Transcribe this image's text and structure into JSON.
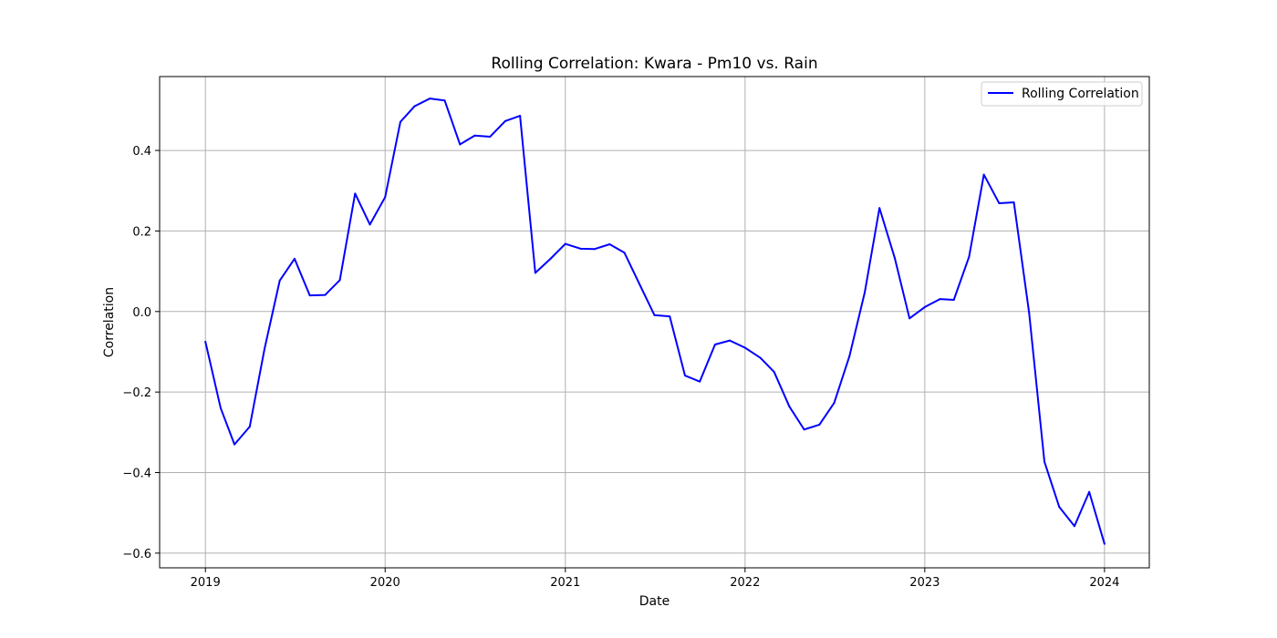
{
  "chart_data": {
    "type": "line",
    "title": "Rolling Correlation: Kwara - Pm10 vs. Rain",
    "xlabel": "Date",
    "ylabel": "Correlation",
    "x_ticks": [
      "2019",
      "2020",
      "2021",
      "2022",
      "2023",
      "2024"
    ],
    "y_ticks": [
      -0.6,
      -0.4,
      -0.2,
      0.0,
      0.2,
      0.4
    ],
    "y_tick_labels": [
      "−0.6",
      "−0.4",
      "−0.2",
      "0.0",
      "0.2",
      "0.4"
    ],
    "xlim": [
      "2018-09-30",
      "2024-04-01"
    ],
    "ylim": [
      -0.6365,
      0.5835
    ],
    "grid": true,
    "legend": {
      "position": "top-right",
      "entries": [
        "Rolling Correlation"
      ]
    },
    "colors": {
      "line": "#0000ff",
      "grid": "#b0b0b0"
    },
    "series": [
      {
        "name": "Rolling Correlation",
        "x": [
          "2019-01-01",
          "2019-02-01",
          "2019-03-01",
          "2019-04-01",
          "2019-05-01",
          "2019-06-01",
          "2019-07-01",
          "2019-08-01",
          "2019-09-01",
          "2019-10-01",
          "2019-11-01",
          "2019-12-01",
          "2020-01-01",
          "2020-02-01",
          "2020-03-01",
          "2020-04-01",
          "2020-05-01",
          "2020-06-01",
          "2020-07-01",
          "2020-08-01",
          "2020-09-01",
          "2020-10-01",
          "2020-11-01",
          "2020-12-01",
          "2021-01-01",
          "2021-02-01",
          "2021-03-01",
          "2021-04-01",
          "2021-05-01",
          "2021-06-01",
          "2021-07-01",
          "2021-08-01",
          "2021-09-01",
          "2021-10-01",
          "2021-11-01",
          "2021-12-01",
          "2022-01-01",
          "2022-02-01",
          "2022-03-01",
          "2022-04-01",
          "2022-05-01",
          "2022-06-01",
          "2022-07-01",
          "2022-08-01",
          "2022-09-01",
          "2022-10-01",
          "2022-11-01",
          "2022-12-01",
          "2023-01-01",
          "2023-02-01",
          "2023-03-01",
          "2023-04-01",
          "2023-05-01",
          "2023-06-01",
          "2023-07-01",
          "2023-08-01",
          "2023-09-01",
          "2023-10-01",
          "2023-11-01",
          "2023-12-01",
          "2024-01-01"
        ],
        "values": [
          -0.075,
          -0.24,
          -0.33,
          -0.286,
          -0.093,
          0.077,
          0.131,
          0.04,
          0.041,
          0.078,
          0.293,
          0.216,
          0.284,
          0.471,
          0.51,
          0.529,
          0.524,
          0.415,
          0.437,
          0.434,
          0.473,
          0.486,
          0.096,
          0.13,
          0.168,
          0.156,
          0.155,
          0.167,
          0.146,
          0.067,
          -0.009,
          -0.012,
          -0.159,
          -0.174,
          -0.082,
          -0.072,
          -0.09,
          -0.115,
          -0.15,
          -0.236,
          -0.293,
          -0.281,
          -0.227,
          -0.111,
          0.047,
          0.257,
          0.133,
          -0.017,
          0.011,
          0.031,
          0.029,
          0.136,
          0.34,
          0.269,
          0.271,
          -0.004,
          -0.373,
          -0.485,
          -0.533,
          -0.448,
          -0.577
        ]
      }
    ]
  }
}
